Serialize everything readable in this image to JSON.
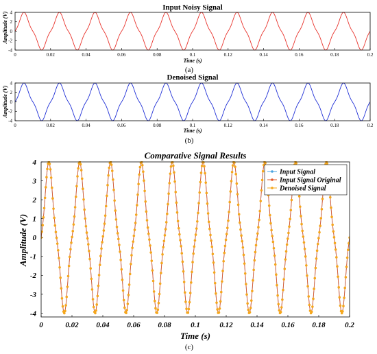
{
  "captions": [
    "(a)",
    "(b)",
    "(c)"
  ],
  "chart_data": [
    {
      "type": "line",
      "title": "Input Noisy Signal",
      "xlabel": "Time (s)",
      "ylabel": "Amplitude (V)",
      "xlim": [
        0,
        0.2
      ],
      "ylim": [
        -4,
        4
      ],
      "xticks": [
        "0",
        "0.02",
        "0.04",
        "0.06",
        "0.08",
        "0.1",
        "0.12",
        "0.14",
        "0.16",
        "0.18",
        "0.2"
      ],
      "yticks": [
        "-4",
        "-2",
        "0",
        "2",
        "4"
      ],
      "grid": false,
      "series": [
        {
          "color": "#e8322b",
          "style": "line",
          "signal": {
            "amplitude": 4,
            "frequency_hz": 50,
            "harmonic3_ratio": 0.15,
            "t_start": 0,
            "t_end": 0.2,
            "samples": 800
          }
        }
      ]
    },
    {
      "type": "line",
      "title": "Denoised Signal",
      "xlabel": "Time (s)",
      "ylabel": "Amplitude (V)",
      "xlim": [
        0,
        0.2
      ],
      "ylim": [
        -4,
        4
      ],
      "xticks": [
        "0",
        "0.02",
        "0.04",
        "0.06",
        "0.08",
        "0.1",
        "0.12",
        "0.14",
        "0.16",
        "0.18",
        "0.2"
      ],
      "yticks": [
        "-4",
        "-2",
        "0",
        "2",
        "4"
      ],
      "grid": false,
      "series": [
        {
          "color": "#1f2fd6",
          "style": "line",
          "signal": {
            "amplitude": 4,
            "frequency_hz": 50,
            "harmonic3_ratio": 0.15,
            "t_start": 0,
            "t_end": 0.2,
            "samples": 800
          }
        }
      ]
    },
    {
      "type": "scatter",
      "title": "Comparative Signal Results",
      "xlabel": "Time (s)",
      "ylabel": "Amplitude (V)",
      "xlim": [
        0,
        0.2
      ],
      "ylim": [
        -4.2,
        4
      ],
      "xticks": [
        "0",
        "0.02",
        "0.04",
        "0.06",
        "0.08",
        "0.1",
        "0.12",
        "0.14",
        "0.16",
        "0.18",
        "0.2"
      ],
      "yticks": [
        "-4",
        "-3",
        "-2",
        "-1",
        "0",
        "1",
        "2",
        "3",
        "4"
      ],
      "grid": false,
      "legend_position": "top-right",
      "series": [
        {
          "name": "Input Signal",
          "color": "#4aa3df",
          "style": "line-dots",
          "signal": {
            "amplitude": 4,
            "frequency_hz": 50,
            "harmonic3_ratio": 0.15,
            "t_start": 0,
            "t_end": 0.2,
            "samples": 400
          }
        },
        {
          "name": "Input Signal Original",
          "color": "#e2582a",
          "style": "line-dots",
          "signal": {
            "amplitude": 4,
            "frequency_hz": 50,
            "harmonic3_ratio": 0.15,
            "t_start": 0,
            "t_end": 0.2,
            "samples": 400
          }
        },
        {
          "name": "Denoised Signal",
          "color": "#f5a71c",
          "style": "dots",
          "signal": {
            "amplitude": 4,
            "frequency_hz": 50,
            "harmonic3_ratio": 0.15,
            "t_start": 0,
            "t_end": 0.2,
            "samples": 400
          }
        }
      ]
    }
  ]
}
